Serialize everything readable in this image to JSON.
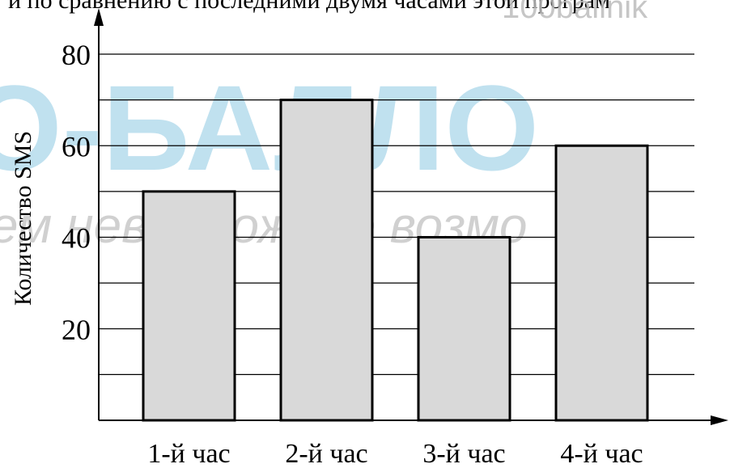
{
  "header_text": "и по сравнению с последними двумя часами этой програм",
  "watermark": {
    "brand": "100ballnik",
    "logo": "О-БАЛЛО",
    "slogan": "ем невозможное возмо"
  },
  "colors": {
    "bar_fill": "#d9d9d9",
    "bar_stroke": "#000000",
    "axis": "#000000",
    "grid": "#000000",
    "watermark_blue": "#8ec9e3",
    "watermark_gray": "#bdbdbd"
  },
  "chart_data": {
    "type": "bar",
    "categories": [
      "1-й час",
      "2-й час",
      "3-й час",
      "4-й час"
    ],
    "values": [
      50,
      70,
      40,
      60
    ],
    "title": "",
    "xlabel": "",
    "ylabel": "Количество SMS",
    "ylim": [
      0,
      80
    ],
    "y_ticks": [
      20,
      40,
      60,
      80
    ],
    "grid_step": 10,
    "grid": true,
    "legend": "none"
  }
}
